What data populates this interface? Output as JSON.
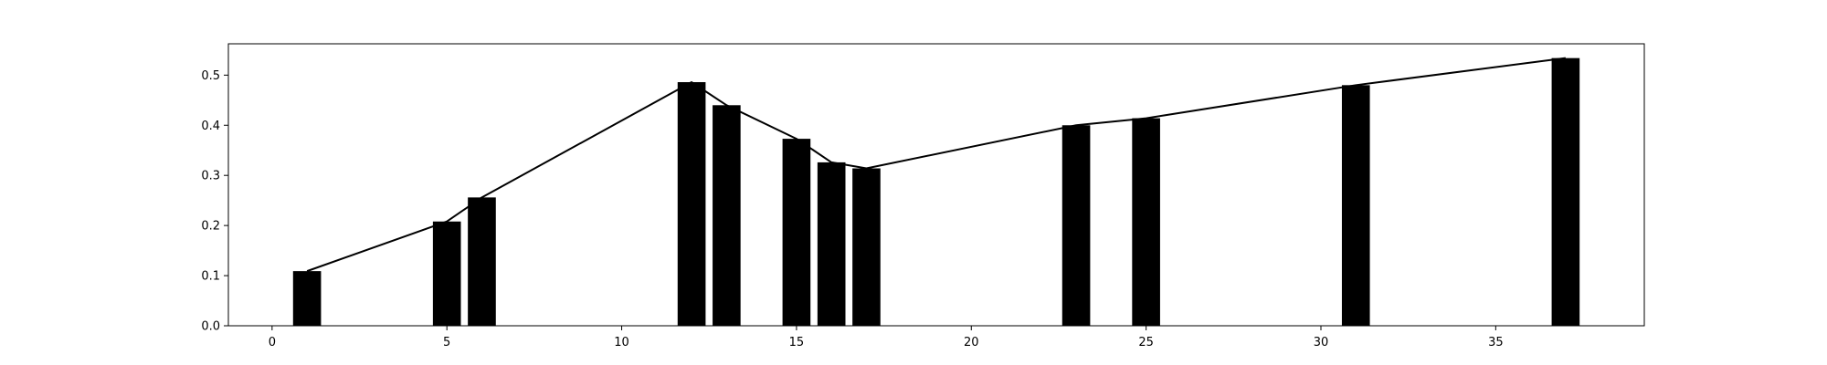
{
  "chart_data": {
    "type": "bar",
    "title": "",
    "xlabel": "",
    "ylabel": "",
    "xlim": [
      -1.25,
      39.25
    ],
    "ylim": [
      0,
      0.5625
    ],
    "x_ticks": [
      0,
      5,
      10,
      15,
      20,
      25,
      30,
      35
    ],
    "x_tick_labels": [
      "0",
      "5",
      "10",
      "15",
      "20",
      "25",
      "30",
      "35"
    ],
    "y_ticks": [
      0.0,
      0.1,
      0.2,
      0.3,
      0.4,
      0.5
    ],
    "y_tick_labels": [
      "0.0",
      "0.1",
      "0.2",
      "0.3",
      "0.4",
      "0.5"
    ],
    "grid": false,
    "series": [
      {
        "type": "bar",
        "x": [
          1,
          5,
          6,
          12,
          13,
          15,
          16,
          17,
          23,
          25,
          31,
          37
        ],
        "values": [
          0.109,
          0.208,
          0.256,
          0.486,
          0.44,
          0.373,
          0.326,
          0.314,
          0.4,
          0.414,
          0.48,
          0.534
        ],
        "width": 0.8,
        "color": "#000000"
      },
      {
        "type": "line",
        "x": [
          1,
          5,
          6,
          12,
          13,
          15,
          16,
          17,
          23,
          25,
          31,
          37
        ],
        "values": [
          0.109,
          0.208,
          0.256,
          0.486,
          0.44,
          0.373,
          0.326,
          0.314,
          0.4,
          0.414,
          0.48,
          0.534
        ],
        "color": "#000000"
      }
    ]
  }
}
